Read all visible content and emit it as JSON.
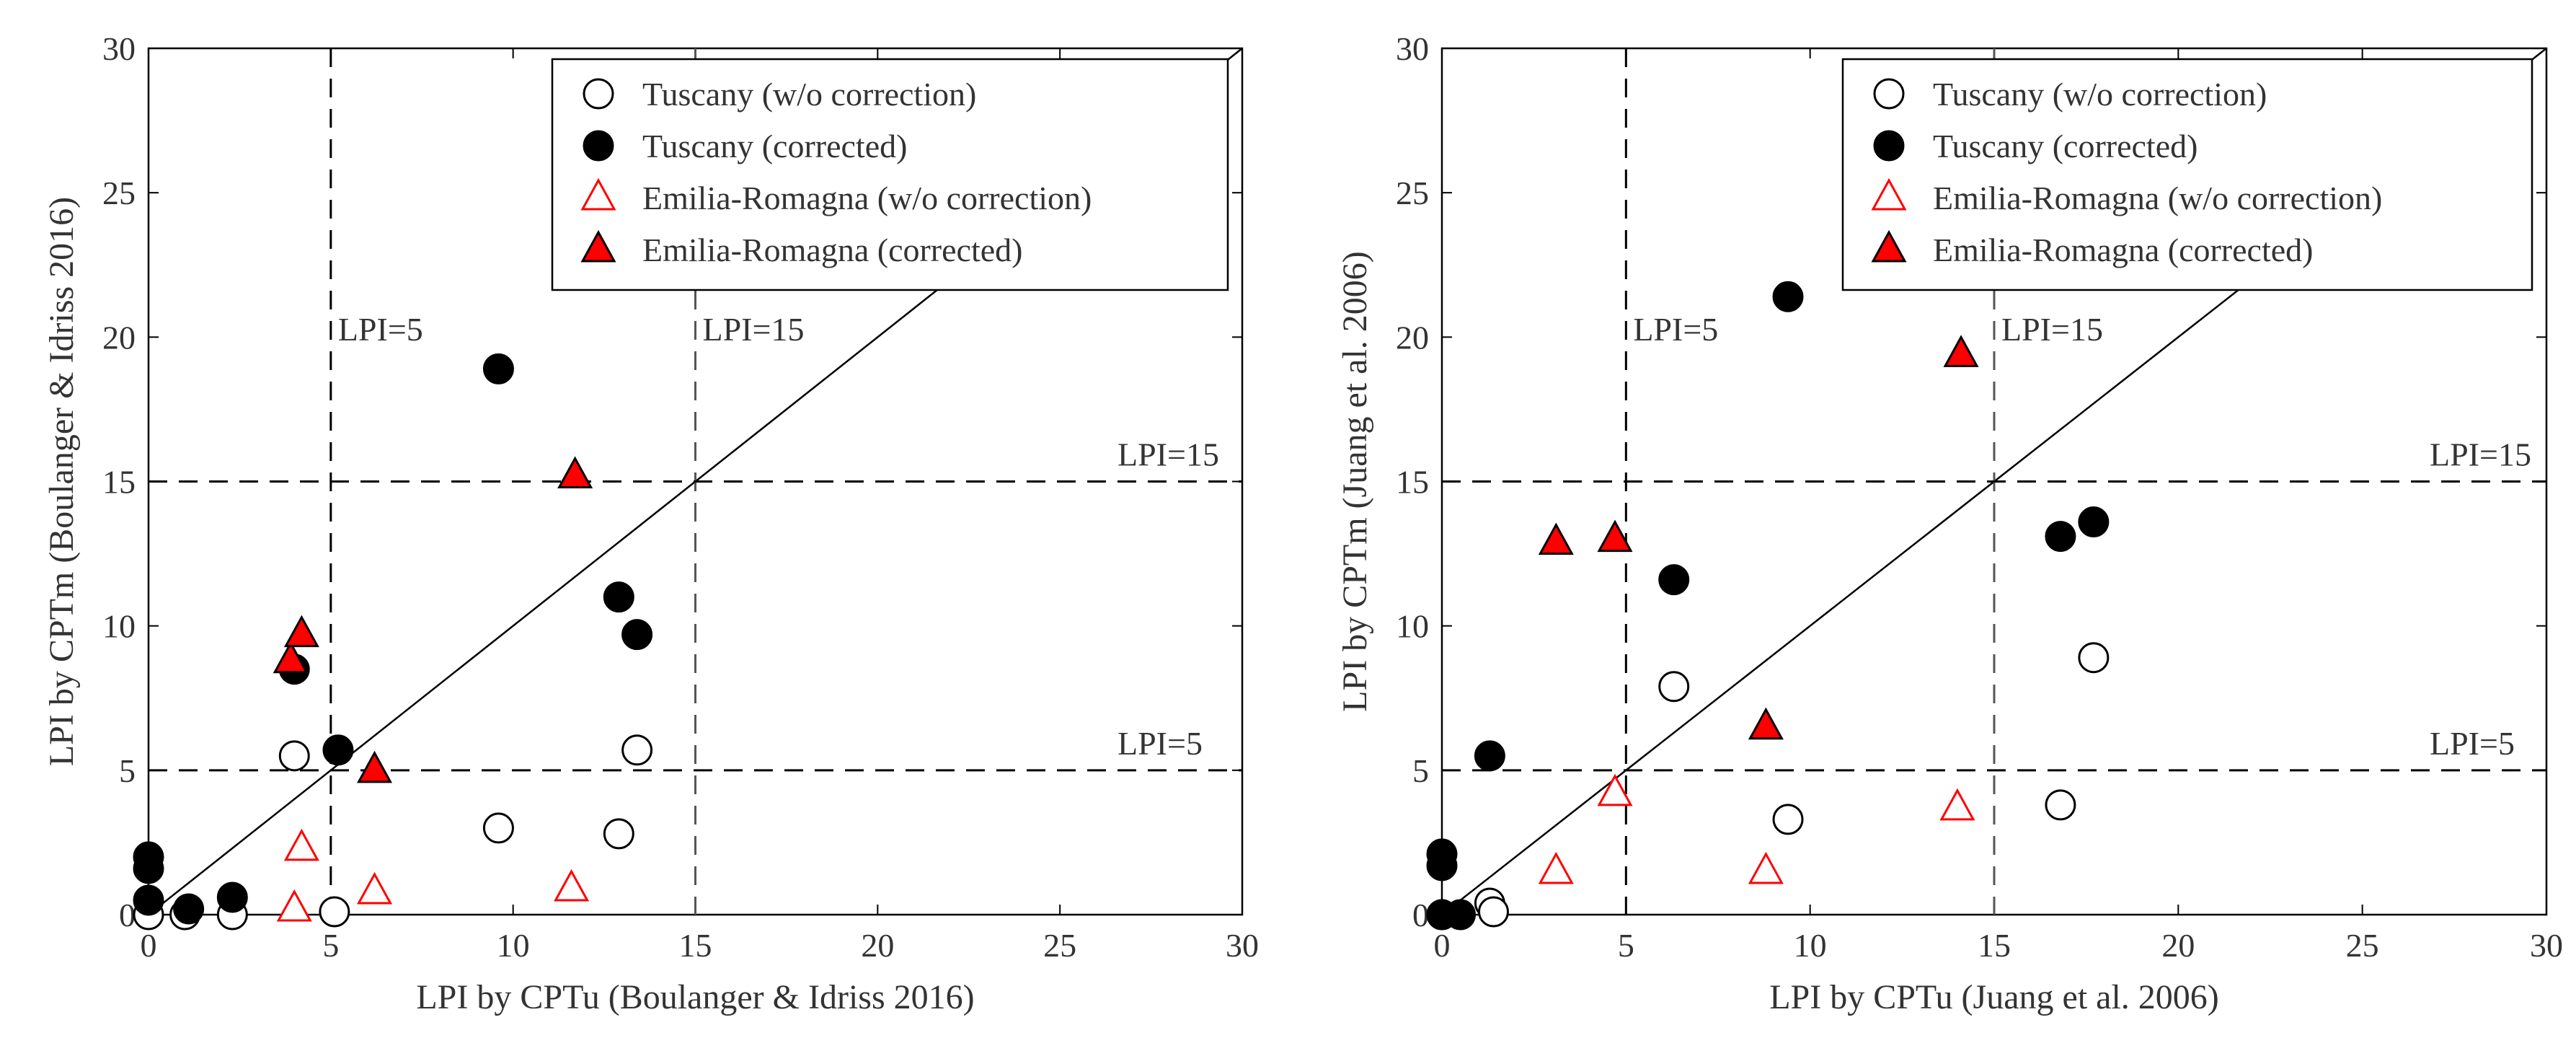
{
  "chart_data": [
    {
      "type": "scatter",
      "xlabel": "LPI by CPTu (Boulanger & Idriss 2016)",
      "ylabel": "LPI by CPTm (Boulanger & Idriss 2016)",
      "xlim": [
        0,
        30
      ],
      "ylim": [
        0,
        30
      ],
      "xticks": [
        "0",
        "5",
        "10",
        "15",
        "20",
        "25",
        "30"
      ],
      "yticks": [
        "0",
        "5",
        "10",
        "15",
        "20",
        "25",
        "30"
      ],
      "grid": false,
      "legend_position": "top-right",
      "reference_lines": {
        "identity": "y = x",
        "vertical": [
          {
            "x": 5,
            "label": "LPI=5"
          },
          {
            "x": 15,
            "label": "LPI=15"
          }
        ],
        "horizontal": [
          {
            "y": 5,
            "label": "LPI=5"
          },
          {
            "y": 15,
            "label": "LPI=15"
          }
        ]
      },
      "series": [
        {
          "name": "Tuscany (w/o correction)",
          "marker": "circle-open",
          "color": "#000000",
          "points": [
            [
              0,
              0
            ],
            [
              1,
              0
            ],
            [
              2.3,
              0
            ],
            [
              4,
              5.5
            ],
            [
              5.1,
              0.1
            ],
            [
              9.6,
              3
            ],
            [
              12.9,
              2.8
            ],
            [
              13.4,
              5.7
            ]
          ]
        },
        {
          "name": "Tuscany (corrected)",
          "marker": "circle-filled",
          "color": "#000000",
          "points": [
            [
              0,
              2
            ],
            [
              0,
              1.6
            ],
            [
              0,
              0.5
            ],
            [
              1.1,
              0.2
            ],
            [
              2.3,
              0.6
            ],
            [
              4,
              8.5
            ],
            [
              5.2,
              5.7
            ],
            [
              9.6,
              18.9
            ],
            [
              12.9,
              11
            ],
            [
              13.4,
              9.7
            ]
          ]
        },
        {
          "name": "Emilia-Romagna (w/o correction)",
          "marker": "triangle-open",
          "color": "#ff0000",
          "points": [
            [
              4,
              0.2
            ],
            [
              4.2,
              2.3
            ],
            [
              6.2,
              0.8
            ],
            [
              11.6,
              0.9
            ]
          ]
        },
        {
          "name": "Emilia-Romagna (corrected)",
          "marker": "triangle-filled",
          "color": "#ff0000",
          "points": [
            [
              3.9,
              8.8
            ],
            [
              4.2,
              9.7
            ],
            [
              6.2,
              5
            ],
            [
              11.7,
              15.2
            ]
          ]
        }
      ]
    },
    {
      "type": "scatter",
      "xlabel": "LPI by CPTu (Juang et al. 2006)",
      "ylabel": "LPI by CPTm (Juang et al. 2006)",
      "xlim": [
        0,
        30
      ],
      "ylim": [
        0,
        30
      ],
      "xticks": [
        "0",
        "5",
        "10",
        "15",
        "20",
        "25",
        "30"
      ],
      "yticks": [
        "0",
        "5",
        "10",
        "15",
        "20",
        "25",
        "30"
      ],
      "grid": false,
      "legend_position": "top-right",
      "reference_lines": {
        "identity": "y = x",
        "vertical": [
          {
            "x": 5,
            "label": "LPI=5"
          },
          {
            "x": 15,
            "label": "LPI=15"
          }
        ],
        "horizontal": [
          {
            "y": 5,
            "label": "LPI=5"
          },
          {
            "y": 15,
            "label": "LPI=15"
          }
        ]
      },
      "series": [
        {
          "name": "Tuscany (w/o correction)",
          "marker": "circle-open",
          "color": "#000000",
          "points": [
            [
              0,
              0
            ],
            [
              1.3,
              0.4
            ],
            [
              1.4,
              0.1
            ],
            [
              6.3,
              7.9
            ],
            [
              9.4,
              3.3
            ],
            [
              16.8,
              3.8
            ],
            [
              17.7,
              8.9
            ]
          ]
        },
        {
          "name": "Tuscany (corrected)",
          "marker": "circle-filled",
          "color": "#000000",
          "points": [
            [
              0,
              2.1
            ],
            [
              0,
              1.7
            ],
            [
              0,
              0
            ],
            [
              0.5,
              0
            ],
            [
              1.3,
              5.5
            ],
            [
              6.3,
              11.6
            ],
            [
              9.4,
              21.4
            ],
            [
              16.8,
              13.1
            ],
            [
              17.7,
              13.6
            ]
          ]
        },
        {
          "name": "Emilia-Romagna (w/o correction)",
          "marker": "triangle-open",
          "color": "#ff0000",
          "points": [
            [
              3.1,
              1.5
            ],
            [
              4.7,
              4.2
            ],
            [
              8.8,
              1.5
            ],
            [
              14,
              3.7
            ]
          ]
        },
        {
          "name": "Emilia-Romagna (corrected)",
          "marker": "triangle-filled",
          "color": "#ff0000",
          "points": [
            [
              3.1,
              12.9
            ],
            [
              4.7,
              13
            ],
            [
              8.8,
              6.5
            ],
            [
              14.1,
              19.4
            ]
          ]
        }
      ]
    }
  ]
}
